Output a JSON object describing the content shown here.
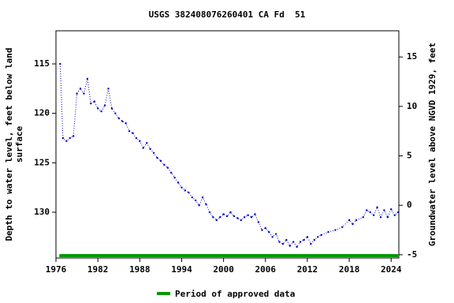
{
  "chart_data": {
    "type": "line",
    "title": "USGS 382408076260401 CA Fd  51",
    "y_label": [
      "Depth to water level, feet below land",
      "surface"
    ],
    "y2_label": "Groundwater level above NGVD 1929, feet",
    "inverted": true,
    "xlim": [
      1976,
      2025.1
    ],
    "xticks": [
      1976,
      1982,
      1988,
      1994,
      2000,
      2006,
      2012,
      2018,
      2024
    ],
    "ylim": [
      111.65,
      134.63
    ],
    "yticks": [
      115,
      120,
      125,
      130
    ],
    "y2lim": [
      -5.33,
      17.65
    ],
    "y2ticks": [
      -5,
      0,
      5,
      10,
      15
    ],
    "series": [
      {
        "color": "#0000cc",
        "x": [
          1976.6,
          1977,
          1977.5,
          1978,
          1978.5,
          1979,
          1979.5,
          1980,
          1980.5,
          1981,
          1981.5,
          1982,
          1982.5,
          1983,
          1983.5,
          1984,
          1984.5,
          1985,
          1985.5,
          1986,
          1986.5,
          1987,
          1987.5,
          1988,
          1988.5,
          1989,
          1989.5,
          1990,
          1990.5,
          1991,
          1991.5,
          1992,
          1992.5,
          1993,
          1993.5,
          1994,
          1994.5,
          1995,
          1995.5,
          1996,
          1996.5,
          1997,
          1997.5,
          1998,
          1998.5,
          1999,
          1999.5,
          2000,
          2000.5,
          2001,
          2001.5,
          2002,
          2002.5,
          2003,
          2003.5,
          2004,
          2004.5,
          2005,
          2005.5,
          2006,
          2006.5,
          2007,
          2007.5,
          2008,
          2008.5,
          2009,
          2009.5,
          2010,
          2010.5,
          2011,
          2011.5,
          2012,
          2012.5,
          2013,
          2013.5,
          2014,
          2015,
          2016,
          2017,
          2018,
          2018.5,
          2019,
          2020,
          2020.5,
          2021,
          2021.5,
          2022,
          2022.5,
          2023,
          2023.5,
          2024,
          2024.5,
          2025
        ],
        "values": [
          115,
          122.5,
          122.8,
          122.5,
          122.3,
          118,
          117.5,
          118,
          116.5,
          119,
          118.8,
          119.5,
          119.8,
          119.2,
          117.5,
          119.5,
          120,
          120.5,
          120.8,
          121,
          121.8,
          122,
          122.5,
          122.8,
          123.5,
          123,
          123.6,
          124,
          124.5,
          124.8,
          125.2,
          125.5,
          126,
          126.5,
          127,
          127.5,
          127.8,
          128,
          128.5,
          128.8,
          129.3,
          128.5,
          129.2,
          130,
          130.5,
          130.8,
          130.5,
          130.2,
          130.4,
          130,
          130.4,
          130.6,
          130.8,
          130.5,
          130.3,
          130.5,
          130.2,
          131,
          131.8,
          131.6,
          132,
          132.5,
          132.2,
          133,
          133.2,
          132.8,
          133.4,
          133,
          133.5,
          133,
          132.8,
          132.5,
          133.2,
          132.8,
          132.5,
          132.3,
          132,
          131.8,
          131.5,
          130.8,
          131.2,
          130.8,
          130.5,
          129.8,
          130,
          130.3,
          129.5,
          130.5,
          129.8,
          130.5,
          129.7,
          130.3,
          130
        ]
      }
    ],
    "approved_period": {
      "name": "Period of approved data",
      "color": "#009900",
      "x": [
        1976.6,
        2025
      ]
    }
  }
}
